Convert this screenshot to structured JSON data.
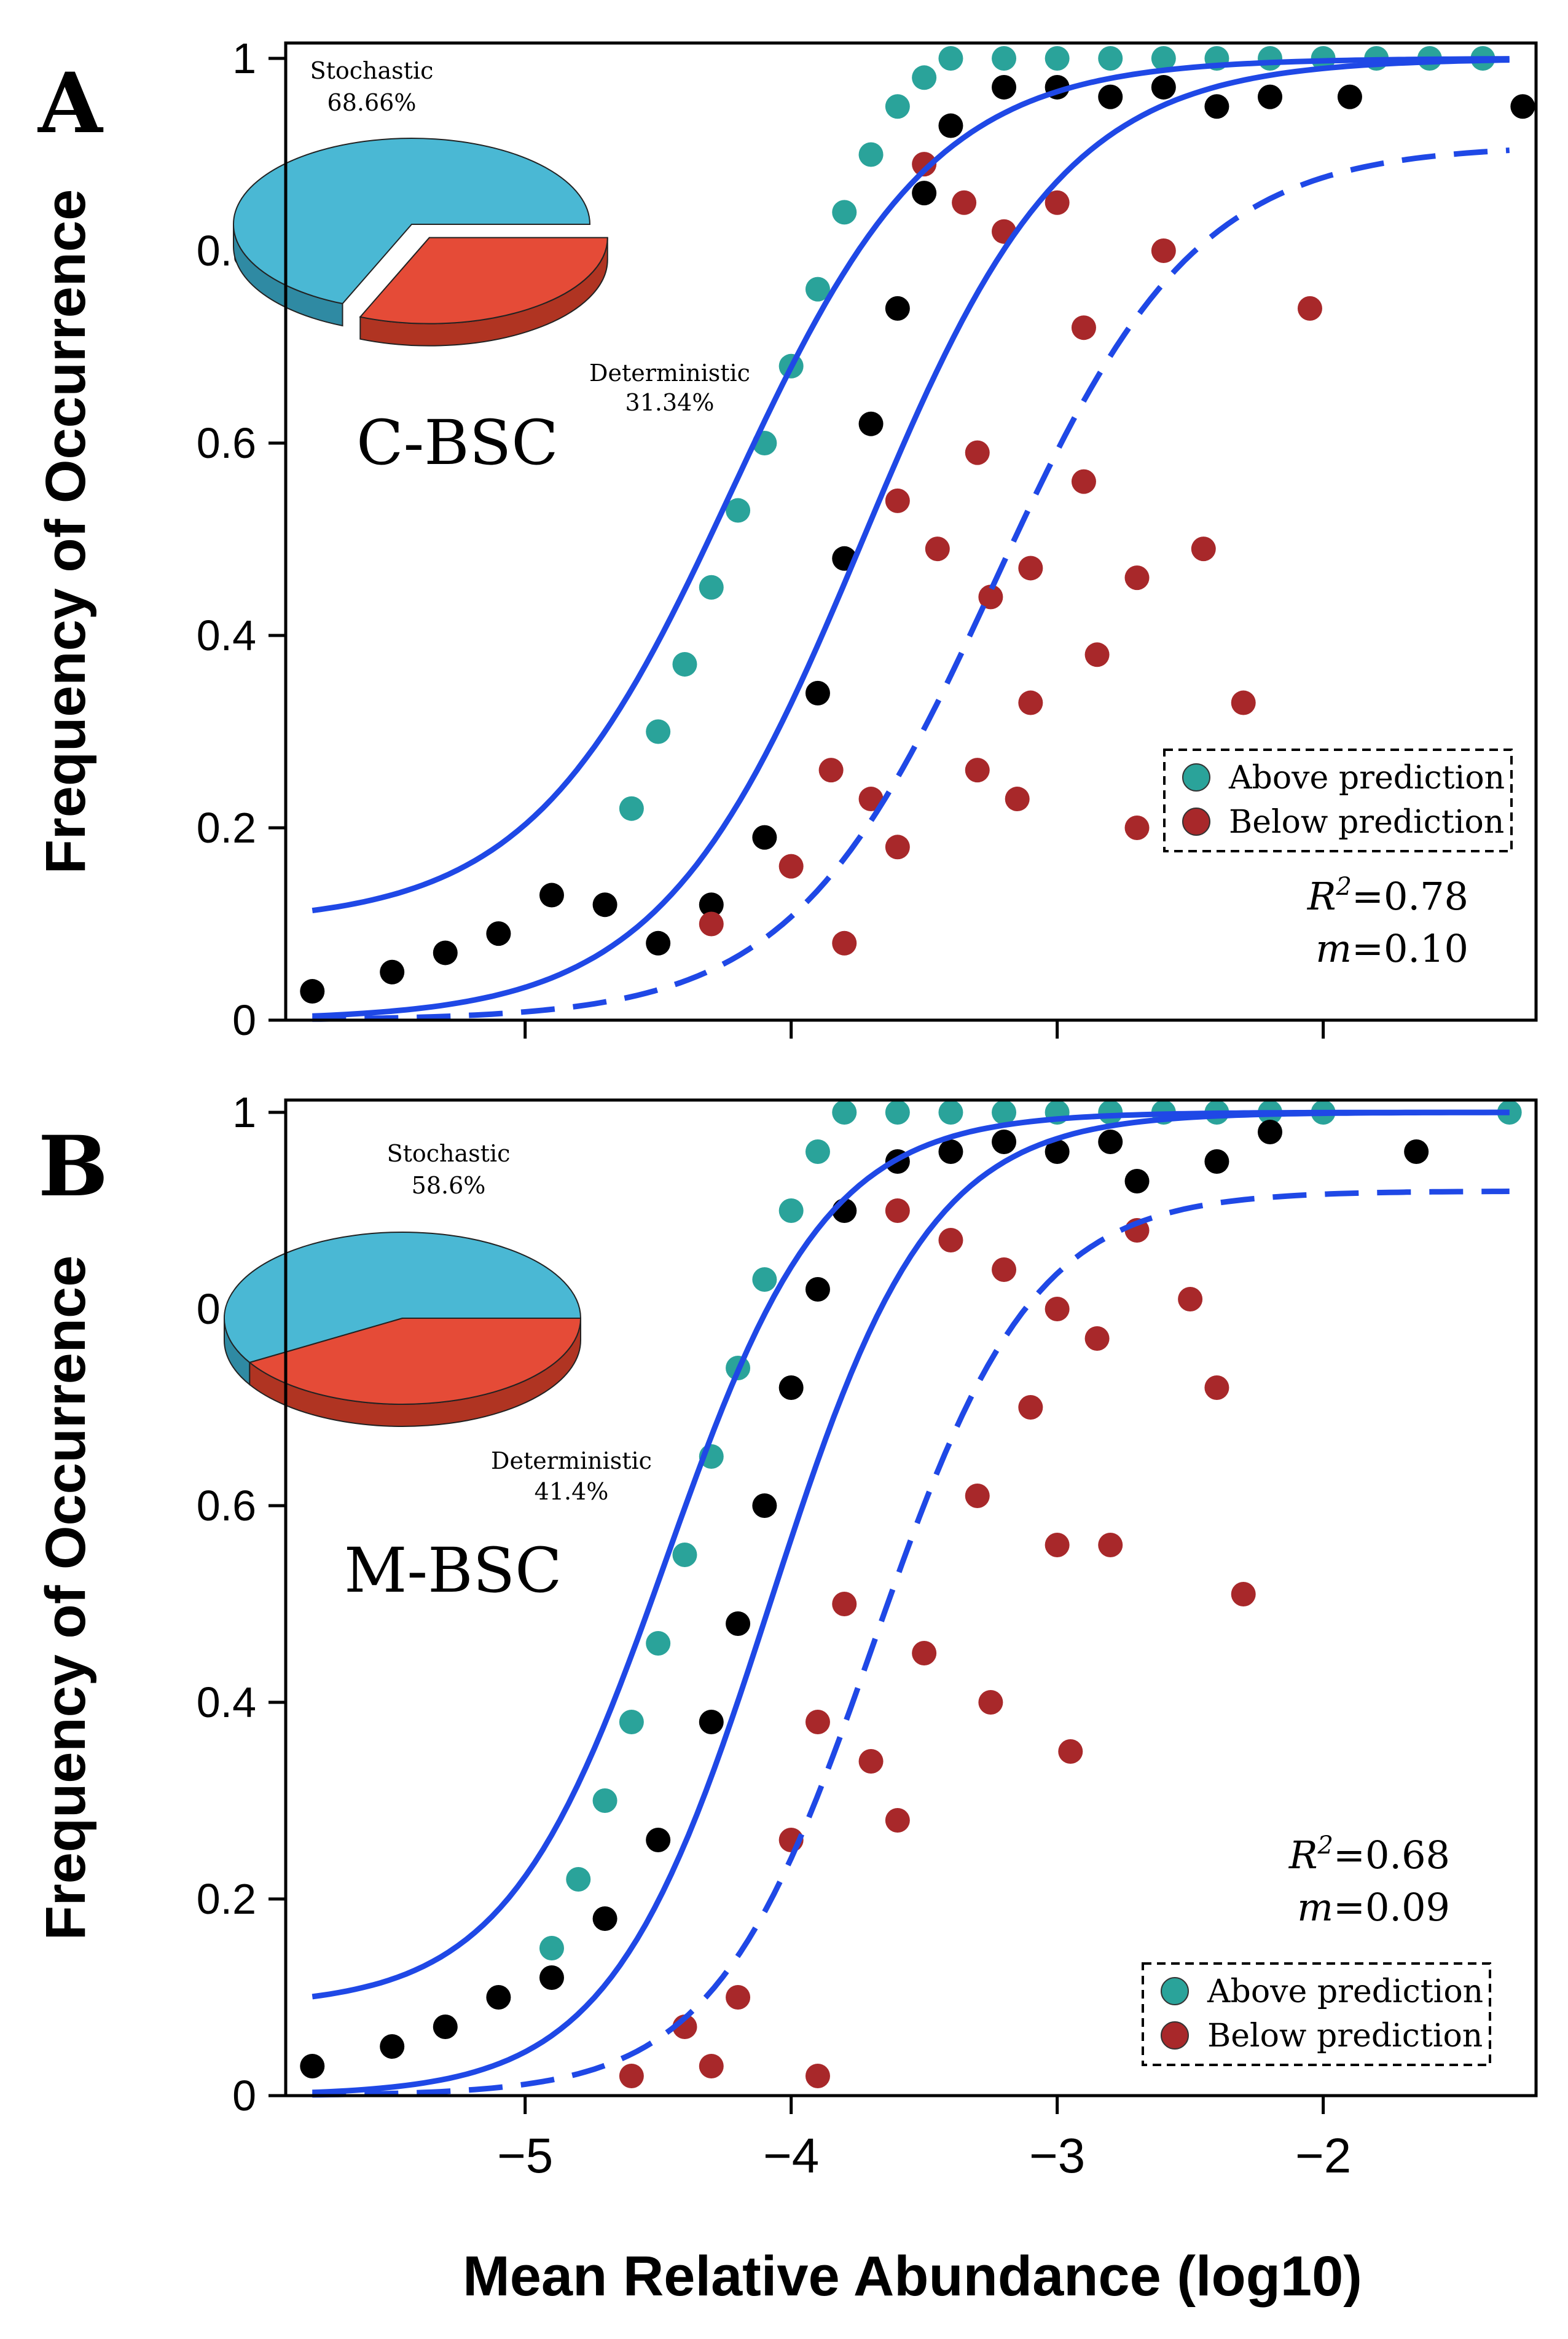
{
  "colors": {
    "above": "#2aa39a",
    "neutral": "#000000",
    "below": "#a8282a",
    "fit": "#1f48e6",
    "pie_stochastic": "#4ab8d4",
    "pie_stochastic_side": "#2f8aa3",
    "pie_deterministic": "#e54b37",
    "pie_deterministic_side": "#b03422"
  },
  "figure": {
    "xlabel": "Mean Relative Abundance (log10)",
    "ylabel": "Frequency of Occurrence"
  },
  "chart_data": [
    {
      "type": "scatter",
      "panel_letter": "A",
      "sample_label": "C-BSC",
      "ylabel": "Frequency of Occurrence",
      "ylim": [
        0,
        1
      ],
      "xlim": [
        -5.9,
        -1.2
      ],
      "yticks": [
        "0",
        "0.2",
        "0.4",
        "0.6",
        "0.8",
        "1"
      ],
      "xticks_unlabeled": [
        -5,
        -4,
        -3,
        -2
      ],
      "grid": false,
      "fit": {
        "center": -3.73,
        "scale": 0.38,
        "upper_plateau": 0.91,
        "lower_start": 0.1
      },
      "stats": {
        "r2_label": "R",
        "r2_sup": "2",
        "r2_value": "=0.78",
        "m_label": "m",
        "m_value": "=0.10"
      },
      "legend": {
        "position": "right",
        "entries": [
          "Above prediction",
          "Below prediction"
        ]
      },
      "pie": {
        "slices": [
          {
            "label": "Stochastic",
            "value_label": "68.66%",
            "value": 68.66
          },
          {
            "label": "Deterministic",
            "value_label": "31.34%",
            "value": 31.34
          }
        ]
      },
      "series": [
        {
          "name": "Above prediction",
          "points": [
            [
              -4.6,
              0.22
            ],
            [
              -4.5,
              0.3
            ],
            [
              -4.4,
              0.37
            ],
            [
              -4.3,
              0.45
            ],
            [
              -4.2,
              0.53
            ],
            [
              -4.1,
              0.6
            ],
            [
              -4.0,
              0.68
            ],
            [
              -3.9,
              0.76
            ],
            [
              -3.8,
              0.84
            ],
            [
              -3.7,
              0.9
            ],
            [
              -3.6,
              0.95
            ],
            [
              -3.5,
              0.98
            ],
            [
              -3.4,
              1.0
            ],
            [
              -3.2,
              1.0
            ],
            [
              -3.0,
              1.0
            ],
            [
              -2.8,
              1.0
            ],
            [
              -2.6,
              1.0
            ],
            [
              -2.4,
              1.0
            ],
            [
              -2.2,
              1.0
            ],
            [
              -2.0,
              1.0
            ],
            [
              -1.8,
              1.0
            ],
            [
              -1.6,
              1.0
            ],
            [
              -1.4,
              1.0
            ]
          ]
        },
        {
          "name": "Below prediction",
          "points": [
            [
              -3.5,
              0.89
            ],
            [
              -3.35,
              0.85
            ],
            [
              -3.2,
              0.82
            ],
            [
              -3.0,
              0.85
            ],
            [
              -2.9,
              0.72
            ],
            [
              -2.6,
              0.8
            ],
            [
              -2.05,
              0.74
            ],
            [
              -3.3,
              0.59
            ],
            [
              -2.9,
              0.56
            ],
            [
              -3.6,
              0.54
            ],
            [
              -3.45,
              0.49
            ],
            [
              -3.1,
              0.47
            ],
            [
              -2.7,
              0.46
            ],
            [
              -2.45,
              0.49
            ],
            [
              -3.25,
              0.44
            ],
            [
              -2.85,
              0.38
            ],
            [
              -3.1,
              0.33
            ],
            [
              -2.3,
              0.33
            ],
            [
              -3.85,
              0.26
            ],
            [
              -3.3,
              0.26
            ],
            [
              -3.15,
              0.23
            ],
            [
              -3.7,
              0.23
            ],
            [
              -3.6,
              0.18
            ],
            [
              -2.7,
              0.2
            ],
            [
              -4.0,
              0.16
            ],
            [
              -4.3,
              0.1
            ],
            [
              -3.8,
              0.08
            ]
          ]
        },
        {
          "name": "Neutral",
          "points": [
            [
              -5.8,
              0.03
            ],
            [
              -5.5,
              0.05
            ],
            [
              -5.3,
              0.07
            ],
            [
              -5.1,
              0.09
            ],
            [
              -4.9,
              0.13
            ],
            [
              -4.7,
              0.12
            ],
            [
              -4.5,
              0.08
            ],
            [
              -4.3,
              0.12
            ],
            [
              -4.1,
              0.19
            ],
            [
              -3.9,
              0.34
            ],
            [
              -3.8,
              0.48
            ],
            [
              -3.7,
              0.62
            ],
            [
              -3.6,
              0.74
            ],
            [
              -3.5,
              0.86
            ],
            [
              -3.4,
              0.93
            ],
            [
              -3.2,
              0.97
            ],
            [
              -3.0,
              0.97
            ],
            [
              -2.8,
              0.96
            ],
            [
              -2.6,
              0.97
            ],
            [
              -2.4,
              0.95
            ],
            [
              -2.2,
              0.96
            ],
            [
              -1.9,
              0.96
            ],
            [
              -1.25,
              0.95
            ]
          ]
        }
      ]
    },
    {
      "type": "scatter",
      "panel_letter": "B",
      "sample_label": "M-BSC",
      "ylabel": "Frequency of Occurrence",
      "ylim": [
        0,
        1
      ],
      "xlim": [
        -5.9,
        -1.2
      ],
      "xticks": [
        "−5",
        "−4",
        "−3",
        "−2"
      ],
      "xtick_values": [
        -5,
        -4,
        -3,
        -2
      ],
      "yticks": [
        "0",
        "0.2",
        "0.4",
        "0.6",
        "0.8",
        "1"
      ],
      "grid": false,
      "fit": {
        "center": -4.08,
        "scale": 0.3,
        "upper_plateau": 0.92,
        "lower_start": 0.09
      },
      "stats": {
        "r2_label": "R",
        "r2_sup": "2",
        "r2_value": "=0.68",
        "m_label": "m",
        "m_value": "=0.09"
      },
      "legend": {
        "position": "bottom-right",
        "entries": [
          "Above prediction",
          "Below prediction"
        ]
      },
      "pie": {
        "slices": [
          {
            "label": "Stochastic",
            "value_label": "58.6%",
            "value": 58.6
          },
          {
            "label": "Deterministic",
            "value_label": "41.4%",
            "value": 41.4
          }
        ]
      },
      "series": [
        {
          "name": "Above prediction",
          "points": [
            [
              -4.9,
              0.15
            ],
            [
              -4.8,
              0.22
            ],
            [
              -4.7,
              0.3
            ],
            [
              -4.6,
              0.38
            ],
            [
              -4.5,
              0.46
            ],
            [
              -4.4,
              0.55
            ],
            [
              -4.3,
              0.65
            ],
            [
              -4.2,
              0.74
            ],
            [
              -4.1,
              0.83
            ],
            [
              -4.0,
              0.9
            ],
            [
              -3.9,
              0.96
            ],
            [
              -3.8,
              1.0
            ],
            [
              -3.6,
              1.0
            ],
            [
              -3.4,
              1.0
            ],
            [
              -3.2,
              1.0
            ],
            [
              -3.0,
              1.0
            ],
            [
              -2.8,
              1.0
            ],
            [
              -2.6,
              1.0
            ],
            [
              -2.4,
              1.0
            ],
            [
              -2.2,
              1.0
            ],
            [
              -2.0,
              1.0
            ],
            [
              -1.3,
              1.0
            ]
          ]
        },
        {
          "name": "Below prediction",
          "points": [
            [
              -3.6,
              0.9
            ],
            [
              -3.4,
              0.87
            ],
            [
              -3.2,
              0.84
            ],
            [
              -3.0,
              0.8
            ],
            [
              -2.7,
              0.88
            ],
            [
              -2.85,
              0.77
            ],
            [
              -2.5,
              0.81
            ],
            [
              -3.1,
              0.7
            ],
            [
              -2.4,
              0.72
            ],
            [
              -3.3,
              0.61
            ],
            [
              -3.0,
              0.56
            ],
            [
              -2.8,
              0.56
            ],
            [
              -2.3,
              0.51
            ],
            [
              -3.8,
              0.5
            ],
            [
              -3.5,
              0.45
            ],
            [
              -3.25,
              0.4
            ],
            [
              -3.9,
              0.38
            ],
            [
              -3.7,
              0.34
            ],
            [
              -2.95,
              0.35
            ],
            [
              -3.6,
              0.28
            ],
            [
              -4.0,
              0.26
            ],
            [
              -4.2,
              0.1
            ],
            [
              -4.4,
              0.07
            ],
            [
              -4.3,
              0.03
            ],
            [
              -4.6,
              0.02
            ],
            [
              -3.9,
              0.02
            ]
          ]
        },
        {
          "name": "Neutral",
          "points": [
            [
              -5.8,
              0.03
            ],
            [
              -5.5,
              0.05
            ],
            [
              -5.3,
              0.07
            ],
            [
              -5.1,
              0.1
            ],
            [
              -4.9,
              0.12
            ],
            [
              -4.7,
              0.18
            ],
            [
              -4.5,
              0.26
            ],
            [
              -4.3,
              0.38
            ],
            [
              -4.2,
              0.48
            ],
            [
              -4.1,
              0.6
            ],
            [
              -4.0,
              0.72
            ],
            [
              -3.9,
              0.82
            ],
            [
              -3.8,
              0.9
            ],
            [
              -3.6,
              0.95
            ],
            [
              -3.4,
              0.96
            ],
            [
              -3.2,
              0.97
            ],
            [
              -3.0,
              0.96
            ],
            [
              -2.8,
              0.97
            ],
            [
              -2.7,
              0.93
            ],
            [
              -2.4,
              0.95
            ],
            [
              -2.2,
              0.98
            ],
            [
              -1.65,
              0.96
            ]
          ]
        }
      ]
    }
  ]
}
